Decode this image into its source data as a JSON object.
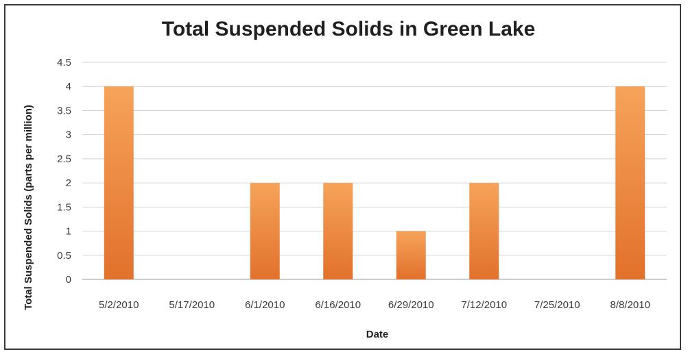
{
  "chart_data": {
    "type": "bar",
    "title": "Total Suspended Solids in Green Lake",
    "xlabel": "Date",
    "ylabel": "Total Suspended Solids (parts per million)",
    "categories": [
      "5/2/2010",
      "5/17/2010",
      "6/1/2010",
      "6/16/2010",
      "6/29/2010",
      "7/12/2010",
      "7/25/2010",
      "8/8/2010"
    ],
    "values": [
      4,
      0,
      2,
      2,
      1,
      2,
      0,
      4
    ],
    "ylim": [
      0,
      4.5
    ],
    "yticks": [
      "0",
      "0.5",
      "1",
      "1.5",
      "2",
      "2.5",
      "3",
      "3.5",
      "4",
      "4.5"
    ],
    "grid": true,
    "legend": "none",
    "colors": {
      "bar_light": "#f6a35a",
      "bar_dark": "#e2712b"
    }
  }
}
